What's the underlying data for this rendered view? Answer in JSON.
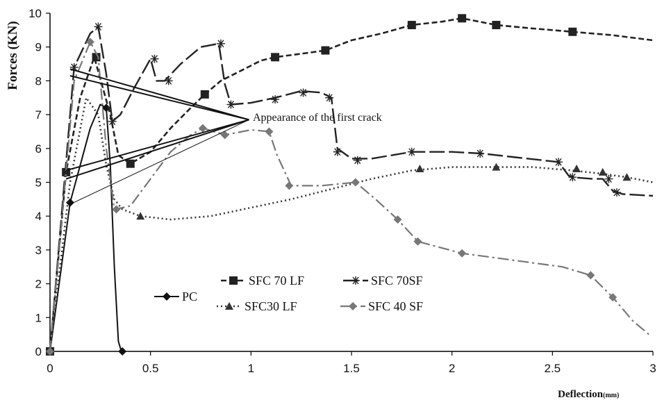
{
  "chart_data": {
    "type": "line",
    "xlabel": "Deflection",
    "xunit": "(mm)",
    "ylabel": "Forces (KN)",
    "xlim": [
      0,
      3
    ],
    "ylim": [
      0,
      10
    ],
    "xticks": [
      "0",
      "0.5",
      "1",
      "1.5",
      "2",
      "2.5",
      "3"
    ],
    "yticks": [
      "0",
      "1",
      "2",
      "3",
      "4",
      "5",
      "6",
      "7",
      "8",
      "9",
      "10"
    ],
    "annotation": "Appearance of the first crack",
    "series": [
      {
        "name": "PC",
        "color": "#111111",
        "style": "solid",
        "marker": "diamond",
        "x": [
          0,
          0.1,
          0.2,
          0.25,
          0.28,
          0.3,
          0.32,
          0.34,
          0.355
        ],
        "y": [
          0,
          4.4,
          6.6,
          7.3,
          7.2,
          5.5,
          2.5,
          0.3,
          0
        ],
        "markers_x": [
          0,
          0.1,
          0.28,
          0.36
        ],
        "markers_y": [
          0,
          4.4,
          7.2,
          0
        ]
      },
      {
        "name": "SFC 70 LF",
        "color": "#222222",
        "style": "dashed",
        "marker": "square",
        "x": [
          0,
          0.08,
          0.15,
          0.22,
          0.3,
          0.34,
          0.4,
          0.5,
          0.6,
          0.7,
          0.77,
          0.85,
          0.95,
          1.05,
          1.12,
          1.25,
          1.37,
          1.5,
          1.65,
          1.8,
          1.95,
          2.05,
          2.22,
          2.4,
          2.6,
          2.8,
          3.0
        ],
        "y": [
          0,
          5.3,
          7.5,
          8.7,
          7.0,
          5.8,
          5.55,
          5.9,
          6.6,
          7.2,
          7.6,
          8.0,
          8.3,
          8.6,
          8.7,
          8.8,
          8.9,
          9.2,
          9.4,
          9.65,
          9.75,
          9.85,
          9.65,
          9.55,
          9.45,
          9.35,
          9.2
        ],
        "markers_x": [
          0,
          0.08,
          0.23,
          0.4,
          0.77,
          1.12,
          1.37,
          1.8,
          2.05,
          2.22,
          2.6
        ],
        "markers_y": [
          0,
          5.3,
          8.7,
          5.55,
          7.6,
          8.7,
          8.9,
          9.65,
          9.85,
          9.65,
          9.45
        ]
      },
      {
        "name": "SFC 70SF",
        "color": "#222222",
        "style": "longdash",
        "marker": "star",
        "x": [
          0,
          0.12,
          0.2,
          0.24,
          0.28,
          0.31,
          0.35,
          0.42,
          0.5,
          0.53,
          0.57,
          0.65,
          0.75,
          0.84,
          0.87,
          0.9,
          1.0,
          1.12,
          1.25,
          1.35,
          1.4,
          1.43,
          1.5,
          1.6,
          1.8,
          2.0,
          2.15,
          2.3,
          2.53,
          2.58,
          2.6,
          2.7,
          2.75,
          2.8,
          2.85,
          3.0
        ],
        "y": [
          0,
          8.4,
          9.4,
          9.6,
          8.2,
          6.8,
          7.0,
          7.8,
          8.65,
          8.0,
          8.0,
          8.5,
          9.0,
          9.1,
          7.9,
          7.3,
          7.35,
          7.5,
          7.7,
          7.65,
          7.5,
          6.0,
          5.7,
          5.7,
          5.9,
          5.9,
          5.85,
          5.75,
          5.6,
          5.2,
          5.15,
          5.1,
          5.1,
          4.75,
          4.65,
          4.6
        ],
        "markers_x": [
          0,
          0.12,
          0.24,
          0.31,
          0.52,
          0.59,
          0.85,
          0.9,
          1.12,
          1.26,
          1.39,
          1.43,
          1.53,
          1.8,
          2.14,
          2.53,
          2.6,
          2.78,
          2.82
        ],
        "markers_y": [
          0,
          8.4,
          9.6,
          6.8,
          8.65,
          8.0,
          9.1,
          7.3,
          7.45,
          7.65,
          7.5,
          5.9,
          5.65,
          5.9,
          5.85,
          5.6,
          5.15,
          5.1,
          4.7
        ]
      },
      {
        "name": "SFC30 LF",
        "color": "#333333",
        "style": "dotted",
        "marker": "triangle",
        "x": [
          0,
          0.1,
          0.18,
          0.24,
          0.28,
          0.32,
          0.36,
          0.45,
          0.6,
          0.8,
          1.0,
          1.2,
          1.4,
          1.6,
          1.8,
          2.0,
          2.2,
          2.4,
          2.6,
          2.75,
          2.87,
          3.0
        ],
        "y": [
          0,
          5.0,
          7.5,
          7.0,
          5.5,
          4.5,
          4.2,
          4.0,
          3.9,
          4.0,
          4.25,
          4.5,
          4.8,
          5.1,
          5.35,
          5.45,
          5.45,
          5.45,
          5.35,
          5.25,
          5.15,
          5.0
        ],
        "markers_x": [
          0,
          0.45,
          1.84,
          2.22,
          2.62,
          2.75,
          2.87
        ],
        "markers_y": [
          0,
          4.0,
          5.4,
          5.45,
          5.4,
          5.3,
          5.15
        ]
      },
      {
        "name": "SFC 40 SF",
        "color": "#777777",
        "style": "dashdot",
        "marker": "diamond",
        "x": [
          0,
          0.12,
          0.2,
          0.24,
          0.28,
          0.32,
          0.4,
          0.5,
          0.6,
          0.7,
          0.76,
          0.87,
          1.0,
          1.09,
          1.13,
          1.2,
          1.35,
          1.52,
          1.62,
          1.73,
          1.83,
          2.05,
          2.3,
          2.55,
          2.69,
          2.8,
          2.9,
          2.98
        ],
        "y": [
          0,
          8.0,
          9.15,
          8.7,
          6.0,
          4.2,
          4.3,
          5.1,
          5.9,
          6.4,
          6.6,
          6.4,
          6.55,
          6.5,
          5.8,
          4.9,
          4.9,
          5.0,
          4.5,
          3.9,
          3.25,
          2.9,
          2.7,
          2.5,
          2.25,
          1.6,
          0.9,
          0.5
        ],
        "markers_x": [
          0,
          0.2,
          0.33,
          0.76,
          0.87,
          1.09,
          1.19,
          1.52,
          1.73,
          1.83,
          2.05,
          2.69,
          2.8
        ],
        "markers_y": [
          0,
          9.15,
          4.2,
          6.6,
          6.4,
          6.5,
          4.9,
          5.0,
          3.9,
          3.25,
          2.9,
          2.25,
          1.6
        ]
      }
    ],
    "crack_pointers": [
      {
        "from": [
          0.1,
          8.35
        ]
      },
      {
        "from": [
          0.1,
          8.15
        ]
      },
      {
        "from": [
          0.08,
          5.35
        ]
      },
      {
        "from": [
          0.08,
          5.1
        ]
      },
      {
        "from": [
          0.1,
          4.35
        ]
      }
    ],
    "crack_target": [
      0.99,
      6.85
    ]
  }
}
